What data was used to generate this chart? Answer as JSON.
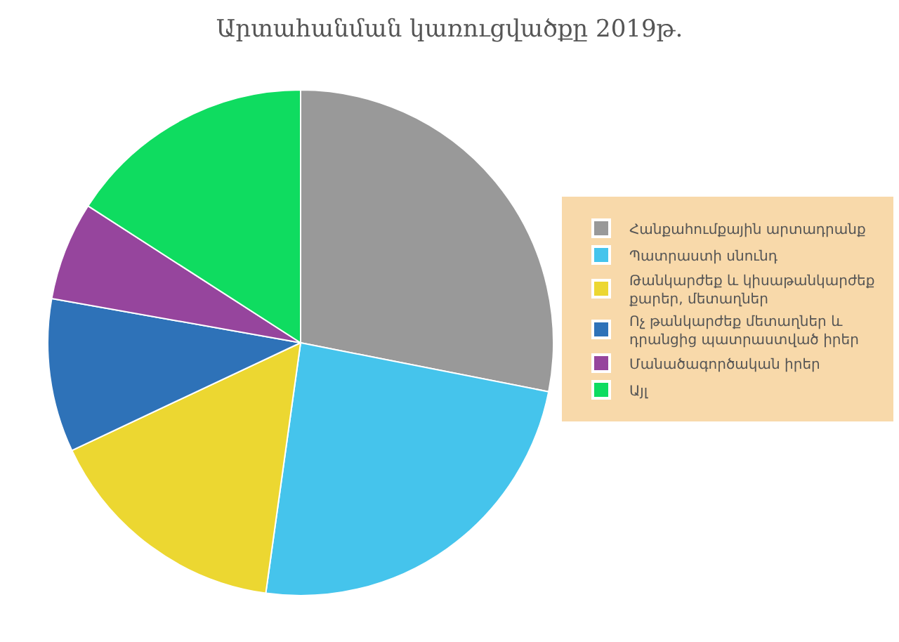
{
  "chart_data": {
    "type": "pie",
    "title": "Արտահանման կառուցվածքը 2019թ.",
    "categories": [
      "Հանքահումքային արտադրանք",
      "Պատրաստի սնունդ",
      "Թանկարժեք և կիսաթանկարժեք քարեր, մետաղներ",
      "Ոչ թանկարժեք մետաղներ և դրանցից պատրաստված իրեր",
      "Մանածագործական իրեր",
      "Այլ"
    ],
    "values": [
      28.1,
      24.1,
      15.8,
      9.8,
      6.3,
      15.9
    ],
    "colors": [
      "#999999",
      "#45c4ec",
      "#ecd731",
      "#2e72b8",
      "#96459d",
      "#0fdc60"
    ],
    "legend": "right"
  }
}
